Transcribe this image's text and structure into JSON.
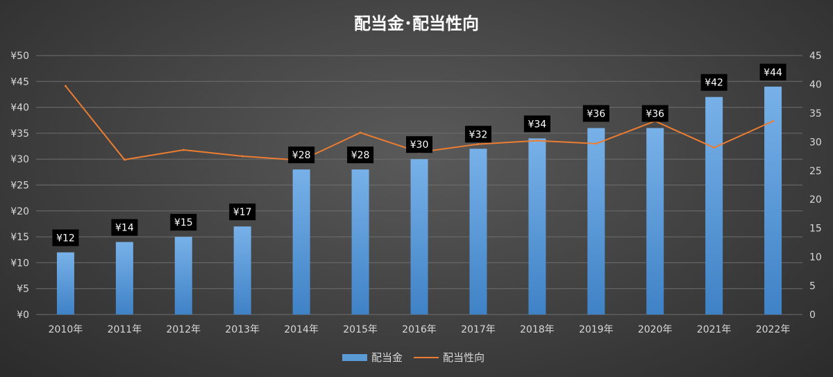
{
  "chart_data": {
    "type": "bar",
    "title": "配当金･配当性向",
    "categories": [
      "2010年",
      "2011年",
      "2012年",
      "2013年",
      "2014年",
      "2015年",
      "2016年",
      "2017年",
      "2018年",
      "2019年",
      "2020年",
      "2021年",
      "2022年"
    ],
    "series": [
      {
        "name": "配当金",
        "type": "bar",
        "axis": "left",
        "values": [
          12,
          14,
          15,
          17,
          28,
          28,
          30,
          32,
          34,
          36,
          36,
          42,
          44
        ],
        "labels": [
          "¥12",
          "¥14",
          "¥15",
          "¥17",
          "¥28",
          "¥28",
          "¥30",
          "¥32",
          "¥34",
          "¥36",
          "¥36",
          "¥42",
          "¥44"
        ],
        "color": "#5b9bd5"
      },
      {
        "name": "配当性向",
        "type": "line",
        "axis": "right",
        "values": [
          39.7,
          26.9,
          28.6,
          27.5,
          26.8,
          31.6,
          28.2,
          29.6,
          30.2,
          29.7,
          33.6,
          29.0,
          33.6
        ],
        "color": "#ed7d31"
      }
    ],
    "left_axis": {
      "ylim": [
        0,
        50
      ],
      "ticks": [
        "¥0",
        "¥5",
        "¥10",
        "¥15",
        "¥20",
        "¥25",
        "¥30",
        "¥35",
        "¥40",
        "¥45",
        "¥50"
      ]
    },
    "right_axis": {
      "ylim": [
        0,
        45
      ],
      "ticks": [
        "0",
        "5",
        "10",
        "15",
        "20",
        "25",
        "30",
        "35",
        "40",
        "45"
      ]
    },
    "grid": true,
    "legend": "bottom-center"
  }
}
